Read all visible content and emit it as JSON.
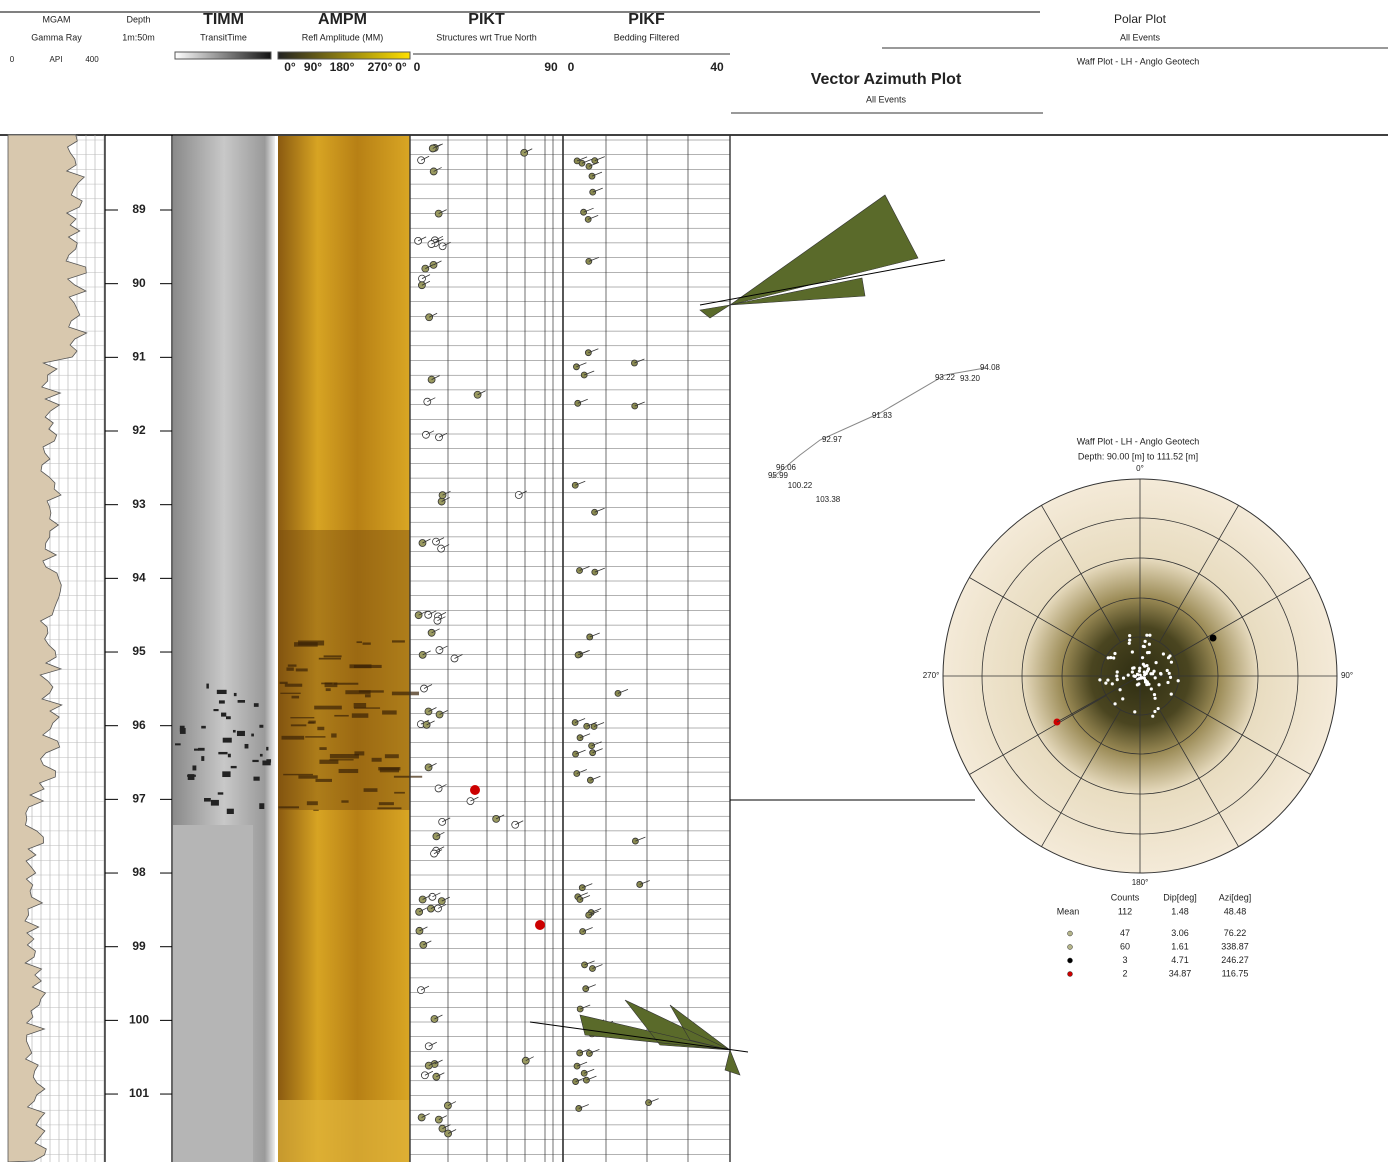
{
  "header": {
    "tracks": [
      {
        "title": "MGAM",
        "subtitle": "Gamma Ray",
        "scale": [
          "0",
          "API",
          "400"
        ]
      },
      {
        "title": "Depth",
        "subtitle": "1m:50m"
      },
      {
        "title": "TIMM",
        "subtitle": "TransitTime"
      },
      {
        "title": "AMPM",
        "subtitle": "Refl Amplitude (MM)",
        "scale": [
          "0°",
          "90°",
          "180°",
          "270°",
          "0°"
        ]
      },
      {
        "title": "PIKT",
        "subtitle": "Structures wrt True North",
        "scale": [
          "0",
          "90"
        ]
      },
      {
        "title": "PIKF",
        "subtitle": "Bedding Filtered",
        "scale": [
          "0",
          "40"
        ]
      }
    ],
    "vector_plot": {
      "title": "Vector Azimuth Plot",
      "subtitle": "All Events"
    },
    "polar_plot": {
      "title": "Polar Plot",
      "subtitle": "All Events",
      "caption": "Waff Plot - LH - Anglo Geotech"
    }
  },
  "depths": [
    "89",
    "90",
    "91",
    "92",
    "93",
    "94",
    "95",
    "96",
    "97",
    "98",
    "99",
    "100",
    "101"
  ],
  "vector_labels": [
    "94.08",
    "93.22",
    "93.20",
    "91.83",
    "92.97",
    "96.06",
    "95.99",
    "100.22",
    "103.38"
  ],
  "waff_plot": {
    "title": "Waff Plot - LH - Anglo Geotech",
    "subtitle": "Depth: 90.00 [m] to 111.52 [m]",
    "directions": [
      "0°",
      "90°",
      "180°",
      "270°"
    ],
    "table": {
      "columns": [
        "Counts",
        "Dip[deg]",
        "Azi[deg]"
      ],
      "rows": [
        [
          "Mean",
          "112",
          "1.48",
          "48.48"
        ],
        [
          "47",
          "3.06",
          "76.22"
        ],
        [
          "60",
          "1.61",
          "338.87"
        ],
        [
          "3",
          "4.71",
          "246.27"
        ],
        [
          "2",
          "34.87",
          "116.75"
        ]
      ]
    }
  }
}
